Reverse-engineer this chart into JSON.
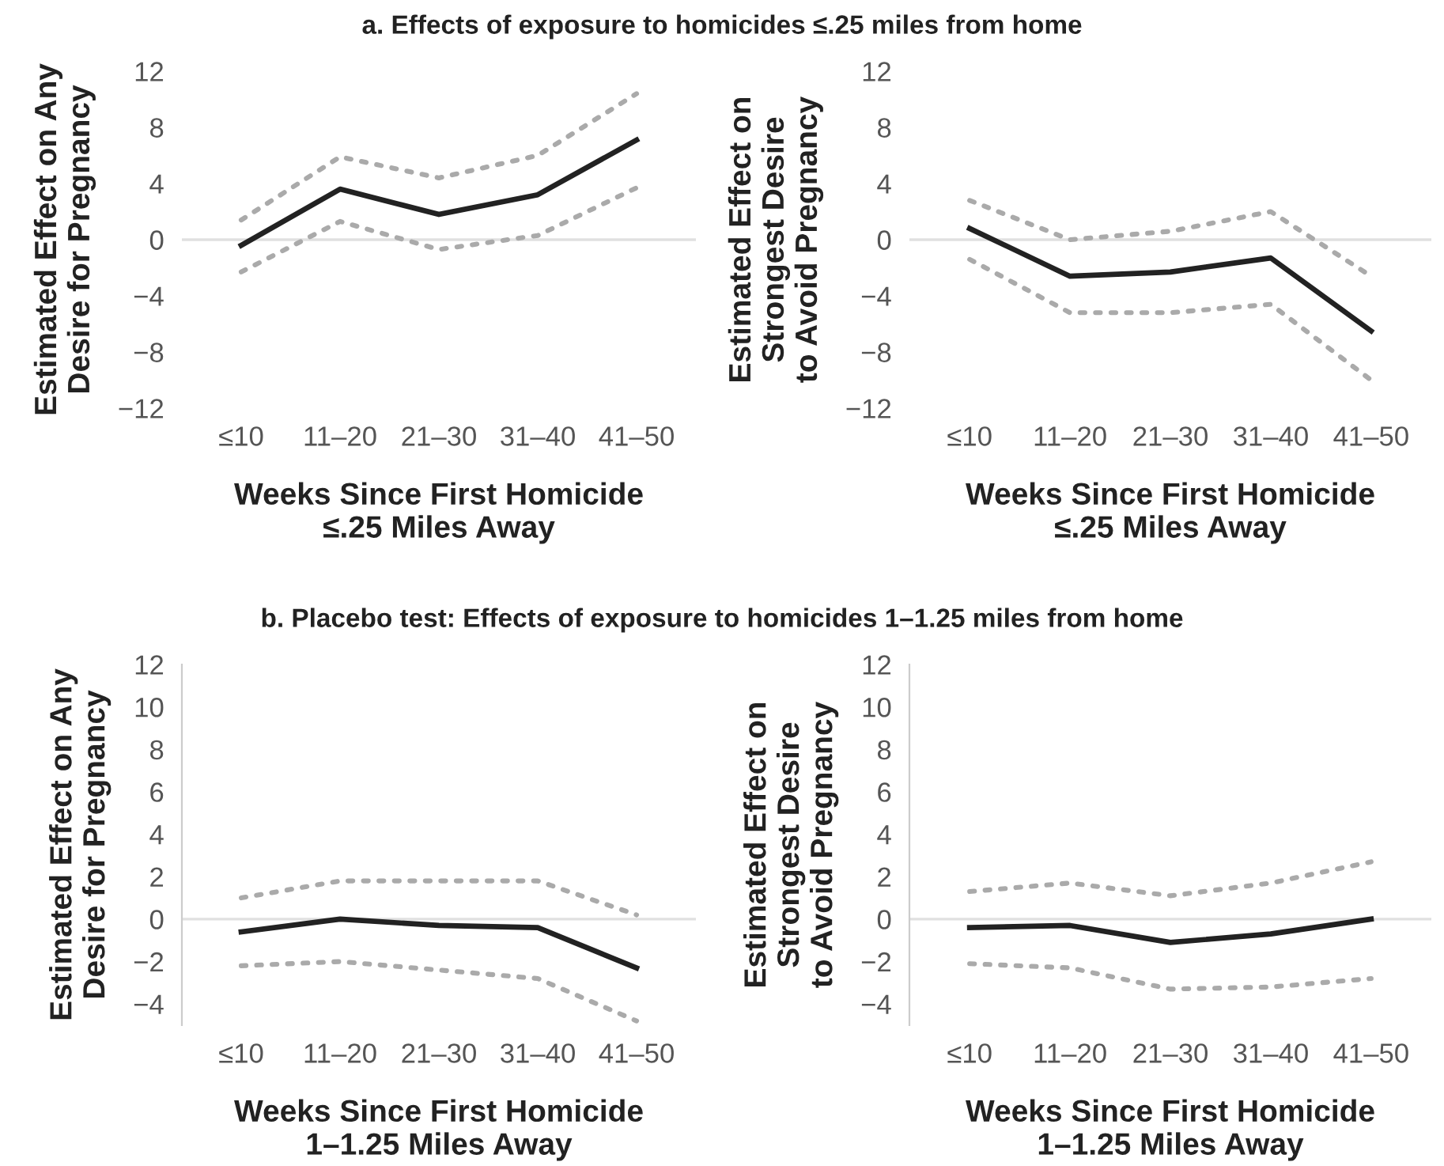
{
  "chart_data": [
    {
      "type": "line",
      "title": "a. Effects of exposure to homicides ≤.25 miles from home",
      "xlabel": "Weeks Since First Homicide\n≤.25 Miles Away",
      "ylabel": "Estimated Effect on Any\nDesire for Pregnancy",
      "categories": [
        "≤10",
        "11–20",
        "21–30",
        "31–40",
        "41–50"
      ],
      "ylim": [
        -12,
        12
      ],
      "yticks": [
        -12,
        -8,
        -4,
        0,
        4,
        8,
        12
      ],
      "ref_lines": [
        {
          "axis": "y",
          "value": 0,
          "color": "#e0e0e0"
        }
      ],
      "grid": false,
      "marker": "none",
      "series": [
        {
          "color": "#222222",
          "line_style": "solid",
          "values": [
            -0.4,
            3.6,
            1.8,
            3.2,
            7.1
          ]
        },
        {
          "color": "#aaaaaa",
          "line_style": "dotted",
          "values": [
            1.4,
            5.9,
            4.4,
            6.0,
            10.4
          ]
        },
        {
          "color": "#aaaaaa",
          "line_style": "dotted",
          "values": [
            -2.3,
            1.3,
            -0.7,
            0.3,
            3.7
          ]
        }
      ]
    },
    {
      "type": "line",
      "xlabel": "Weeks Since First Homicide\n≤.25 Miles Away",
      "ylabel": "Estimated Effect on\nStrongest Desire\nto Avoid Pregnancy",
      "categories": [
        "≤10",
        "11–20",
        "21–30",
        "31–40",
        "41–50"
      ],
      "ylim": [
        -12,
        12
      ],
      "yticks": [
        -12,
        -8,
        -4,
        0,
        4,
        8,
        12
      ],
      "ref_lines": [
        {
          "axis": "y",
          "value": 0,
          "color": "#e0e0e0"
        }
      ],
      "grid": false,
      "marker": "none",
      "series": [
        {
          "color": "#222222",
          "line_style": "solid",
          "values": [
            0.8,
            -2.6,
            -2.3,
            -1.3,
            -6.5
          ]
        },
        {
          "color": "#aaaaaa",
          "line_style": "dotted",
          "values": [
            2.8,
            0.0,
            0.6,
            2.0,
            -2.6
          ]
        },
        {
          "color": "#aaaaaa",
          "line_style": "dotted",
          "values": [
            -1.4,
            -5.2,
            -5.2,
            -4.6,
            -10.0
          ]
        }
      ]
    },
    {
      "type": "line",
      "title": "b. Placebo test: Effects of exposure to homicides 1–1.25 miles from home",
      "xlabel": "Weeks Since First Homicide\n1–1.25 Miles Away",
      "ylabel": "Estimated Effect on Any\nDesire for Pregnancy",
      "categories": [
        "≤10",
        "11–20",
        "21–30",
        "31–40",
        "41–50"
      ],
      "ylim": [
        -5,
        12
      ],
      "yticks": [
        -4,
        -2,
        0,
        2,
        4,
        6,
        8,
        10,
        12
      ],
      "ref_lines": [
        {
          "axis": "y",
          "value": 0,
          "color": "#e0e0e0"
        }
      ],
      "grid": false,
      "marker": "none",
      "series": [
        {
          "color": "#222222",
          "line_style": "solid",
          "values": [
            -0.6,
            0.0,
            -0.3,
            -0.4,
            -2.3
          ]
        },
        {
          "color": "#aaaaaa",
          "line_style": "dotted",
          "values": [
            1.0,
            1.8,
            1.8,
            1.8,
            0.2
          ]
        },
        {
          "color": "#aaaaaa",
          "line_style": "dotted",
          "values": [
            -2.2,
            -2.0,
            -2.4,
            -2.8,
            -4.8
          ]
        }
      ]
    },
    {
      "type": "line",
      "xlabel": "Weeks Since First Homicide\n1–1.25 Miles Away",
      "ylabel": "Estimated Effect on\nStrongest Desire\nto Avoid Pregnancy",
      "categories": [
        "≤10",
        "11–20",
        "21–30",
        "31–40",
        "41–50"
      ],
      "ylim": [
        -5,
        12
      ],
      "yticks": [
        -4,
        -2,
        0,
        2,
        4,
        6,
        8,
        10,
        12
      ],
      "ref_lines": [
        {
          "axis": "y",
          "value": 0,
          "color": "#e0e0e0"
        }
      ],
      "grid": false,
      "marker": "none",
      "series": [
        {
          "color": "#222222",
          "line_style": "solid",
          "values": [
            -0.4,
            -0.3,
            -1.1,
            -0.7,
            0.0
          ]
        },
        {
          "color": "#aaaaaa",
          "line_style": "dotted",
          "values": [
            1.3,
            1.7,
            1.1,
            1.7,
            2.7
          ]
        },
        {
          "color": "#aaaaaa",
          "line_style": "dotted",
          "values": [
            -2.1,
            -2.3,
            -3.3,
            -3.2,
            -2.8
          ]
        }
      ]
    }
  ]
}
